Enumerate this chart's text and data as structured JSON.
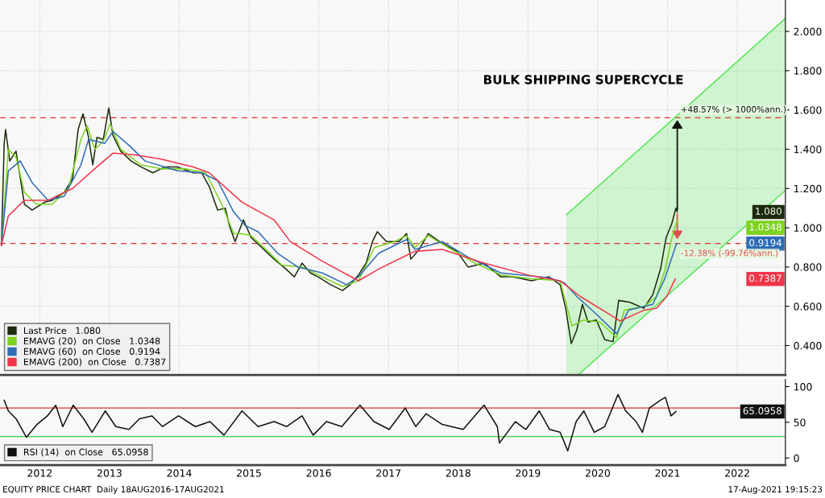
{
  "chart_data": [
    {
      "type": "line",
      "xlim": [
        2011.43,
        2022.69
      ],
      "ylim": [
        0.25,
        2.16
      ],
      "xticks": [
        2012,
        2013,
        2014,
        2015,
        2016,
        2017,
        2018,
        2019,
        2020,
        2021,
        2022
      ],
      "yticks": [
        {
          "value": 0.4,
          "label": "0.400"
        },
        {
          "value": 0.6,
          "label": "0.600"
        },
        {
          "value": 0.8,
          "label": "0.800"
        },
        {
          "value": 1.0,
          "label": "1.000"
        },
        {
          "value": 1.2,
          "label": "1.200"
        },
        {
          "value": 1.4,
          "label": "1.400"
        },
        {
          "value": 1.6,
          "label": "1.600"
        },
        {
          "value": 1.8,
          "label": "1.800"
        },
        {
          "value": 2.0,
          "label": "2.000"
        }
      ],
      "tick_labels": "y",
      "grid": true,
      "legend": "bottom left",
      "series": [
        {
          "type": "line",
          "color": "#55e655",
          "x": [
            2019.55,
            2022.69
          ],
          "values": [
            1.066,
            2.066
          ]
        },
        {
          "type": "line",
          "color": "#55e655",
          "x": [
            2019.72,
            2022.69
          ],
          "values": [
            0.25,
            1.19
          ]
        },
        {
          "name": "Last Price   1.080",
          "color": "#1c2b0c",
          "x": [
            2011.45,
            2011.49,
            2011.51,
            2011.57,
            2011.66,
            2011.78,
            2011.89,
            2012.07,
            2012.18,
            2012.35,
            2012.47,
            2012.55,
            2012.62,
            2012.7,
            2012.76,
            2012.82,
            2012.91,
            2012.99,
            2013.05,
            2013.16,
            2013.31,
            2013.45,
            2013.62,
            2013.8,
            2013.97,
            2014.2,
            2014.32,
            2014.43,
            2014.55,
            2014.66,
            2014.72,
            2014.8,
            2014.92,
            2015.03,
            2015.18,
            2015.36,
            2015.53,
            2015.65,
            2015.76,
            2015.88,
            2015.99,
            2016.17,
            2016.34,
            2016.45,
            2016.57,
            2016.68,
            2016.77,
            2016.84,
            2016.97,
            2017.15,
            2017.26,
            2017.32,
            2017.44,
            2017.57,
            2017.77,
            2017.98,
            2018.14,
            2018.37,
            2018.61,
            2018.78,
            2019.05,
            2019.3,
            2019.46,
            2019.54,
            2019.62,
            2019.7,
            2019.78,
            2019.86,
            2019.98,
            2020.1,
            2020.22,
            2020.3,
            2020.46,
            2020.66,
            2020.79,
            2020.9,
            2020.98,
            2021.06,
            2021.12,
            2021.14
          ],
          "values": [
            0.91,
            1.43,
            1.5,
            1.34,
            1.39,
            1.12,
            1.09,
            1.13,
            1.14,
            1.18,
            1.25,
            1.5,
            1.58,
            1.46,
            1.32,
            1.46,
            1.45,
            1.61,
            1.47,
            1.39,
            1.34,
            1.31,
            1.28,
            1.31,
            1.31,
            1.28,
            1.28,
            1.21,
            1.09,
            1.1,
            1.01,
            0.93,
            1.04,
            0.95,
            0.9,
            0.84,
            0.79,
            0.75,
            0.82,
            0.77,
            0.75,
            0.71,
            0.68,
            0.71,
            0.76,
            0.82,
            0.93,
            0.98,
            0.93,
            0.93,
            0.97,
            0.84,
            0.89,
            0.97,
            0.92,
            0.88,
            0.8,
            0.82,
            0.75,
            0.75,
            0.73,
            0.75,
            0.71,
            0.59,
            0.41,
            0.48,
            0.61,
            0.52,
            0.53,
            0.43,
            0.42,
            0.63,
            0.62,
            0.59,
            0.66,
            0.79,
            0.95,
            1.02,
            1.1,
            1.08
          ]
        },
        {
          "name": "EMAVG (20)  on Close   1.0348",
          "color": "#7ed321",
          "x": [
            2011.45,
            2011.55,
            2011.66,
            2011.78,
            2011.95,
            2012.18,
            2012.41,
            2012.59,
            2012.68,
            2012.79,
            2012.91,
            2013.01,
            2013.16,
            2013.45,
            2013.74,
            2014.09,
            2014.38,
            2014.61,
            2014.78,
            2014.9,
            2015.03,
            2015.24,
            2015.47,
            2015.76,
            2016.05,
            2016.34,
            2016.57,
            2016.8,
            2017.09,
            2017.26,
            2017.38,
            2017.57,
            2017.9,
            2018.24,
            2018.61,
            2019.05,
            2019.46,
            2019.63,
            2019.8,
            2020.03,
            2020.27,
            2020.38,
            2020.67,
            2020.84,
            2020.96,
            2021.07,
            2021.14
          ],
          "values": [
            0.91,
            1.4,
            1.36,
            1.18,
            1.12,
            1.12,
            1.2,
            1.45,
            1.52,
            1.4,
            1.44,
            1.53,
            1.4,
            1.32,
            1.3,
            1.3,
            1.28,
            1.12,
            0.97,
            0.97,
            0.96,
            0.89,
            0.81,
            0.8,
            0.75,
            0.7,
            0.73,
            0.9,
            0.93,
            0.96,
            0.9,
            0.96,
            0.89,
            0.82,
            0.76,
            0.74,
            0.73,
            0.5,
            0.53,
            0.52,
            0.44,
            0.58,
            0.6,
            0.65,
            0.78,
            0.96,
            1.0348
          ]
        },
        {
          "name": "EMAVG (60)  on Close   0.9194",
          "color": "#2f6db5",
          "x": [
            2011.45,
            2011.55,
            2011.72,
            2011.89,
            2012.12,
            2012.35,
            2012.59,
            2012.7,
            2012.93,
            2013.05,
            2013.28,
            2013.51,
            2013.97,
            2014.32,
            2014.55,
            2014.78,
            2014.95,
            2015.13,
            2015.41,
            2015.7,
            2016.05,
            2016.4,
            2016.57,
            2016.86,
            2017.26,
            2017.38,
            2017.77,
            2018.14,
            2018.61,
            2019.3,
            2019.52,
            2019.7,
            2019.98,
            2020.27,
            2020.44,
            2020.79,
            2020.96,
            2021.13
          ],
          "values": [
            0.91,
            1.29,
            1.34,
            1.23,
            1.14,
            1.16,
            1.32,
            1.45,
            1.43,
            1.49,
            1.42,
            1.34,
            1.29,
            1.28,
            1.24,
            1.08,
            1.01,
            0.98,
            0.87,
            0.8,
            0.77,
            0.71,
            0.75,
            0.87,
            0.94,
            0.89,
            0.93,
            0.85,
            0.77,
            0.745,
            0.72,
            0.65,
            0.56,
            0.46,
            0.58,
            0.61,
            0.74,
            0.9194
          ]
        },
        {
          "name": "EMAVG (200)  on Close   0.7387",
          "color": "#f0364a",
          "x": [
            2011.45,
            2011.55,
            2011.78,
            2012.12,
            2012.47,
            2012.82,
            2013.05,
            2013.39,
            2013.74,
            2014.2,
            2014.43,
            2014.9,
            2015.36,
            2015.59,
            2016.05,
            2016.57,
            2016.86,
            2017.26,
            2017.38,
            2017.77,
            2018.37,
            2019.05,
            2019.46,
            2019.75,
            2020.21,
            2020.32,
            2020.66,
            2020.84,
            2020.99,
            2021.11
          ],
          "values": [
            0.91,
            1.06,
            1.14,
            1.14,
            1.2,
            1.31,
            1.38,
            1.37,
            1.35,
            1.31,
            1.28,
            1.13,
            1.04,
            0.93,
            0.83,
            0.73,
            0.79,
            0.86,
            0.88,
            0.89,
            0.82,
            0.755,
            0.73,
            0.65,
            0.55,
            0.525,
            0.58,
            0.59,
            0.65,
            0.7387
          ]
        }
      ],
      "ref_lines": [
        {
          "axis": "y",
          "value": 1.56,
          "color": "#e03030",
          "line_style": "dashed"
        },
        {
          "axis": "y",
          "value": 0.92,
          "color": "#e03030",
          "line_style": "dashed"
        }
      ],
      "annotations": [
        "BULK SHIPPING SUPERCYCLE",
        "1.080",
        "1.0348",
        "0.9194",
        "0.7387",
        {
          "text": "+48.57% (> 1000%ann.)",
          "x": 2021.14,
          "y": 1.56
        },
        {
          "text": "-12.38% (-99.76%ann.)",
          "x": 2021.14,
          "y": 0.93
        }
      ]
    },
    {
      "type": "line",
      "xlim": [
        2011.43,
        2022.69
      ],
      "ylim": [
        -10,
        110
      ],
      "xticks": [
        2012,
        2013,
        2014,
        2015,
        2016,
        2017,
        2018,
        2019,
        2020,
        2021,
        2022
      ],
      "yticks": [
        0,
        50,
        100
      ],
      "legend": "bottom left",
      "series": [
        {
          "name": "RSI (14)  on Close   65.0958",
          "color": "#111111",
          "x": [
            2011.49,
            2011.55,
            2011.66,
            2011.81,
            2011.96,
            2012.11,
            2012.23,
            2012.33,
            2012.48,
            2012.63,
            2012.75,
            2012.94,
            2013.09,
            2013.28,
            2013.43,
            2013.61,
            2013.76,
            2013.99,
            2014.23,
            2014.44,
            2014.64,
            2014.9,
            2015.13,
            2015.36,
            2015.54,
            2015.76,
            2015.92,
            2016.11,
            2016.33,
            2016.59,
            2016.79,
            2017.01,
            2017.24,
            2017.39,
            2017.54,
            2017.77,
            2018.07,
            2018.37,
            2018.56,
            2018.59,
            2018.82,
            2018.97,
            2019.16,
            2019.31,
            2019.46,
            2019.57,
            2019.69,
            2019.8,
            2019.95,
            2020.1,
            2020.29,
            2020.4,
            2020.55,
            2020.64,
            2020.74,
            2020.9,
            2020.97,
            2021.05,
            2021.12
          ],
          "values": [
            81,
            66,
            55,
            29,
            47,
            59,
            74,
            44,
            74,
            55,
            36,
            66,
            44,
            40,
            55,
            59,
            44,
            59,
            44,
            51,
            32,
            66,
            44,
            51,
            44,
            59,
            32,
            51,
            44,
            74,
            51,
            40,
            70,
            44,
            62,
            47,
            40,
            74,
            44,
            21,
            51,
            40,
            66,
            40,
            36,
            10,
            51,
            66,
            36,
            44,
            89,
            66,
            51,
            36,
            70,
            81,
            85,
            59,
            65
          ]
        }
      ],
      "ref_lines": [
        {
          "axis": "y",
          "value": 70,
          "color": "#e03030"
        },
        {
          "axis": "y",
          "value": 30,
          "color": "#40d040"
        }
      ],
      "annotations": [
        "EQUITY PRICE CHART  Daily 18AUG2016-17AUG2021",
        "17-Aug-2021 19:15:23",
        "65.0958"
      ]
    }
  ]
}
